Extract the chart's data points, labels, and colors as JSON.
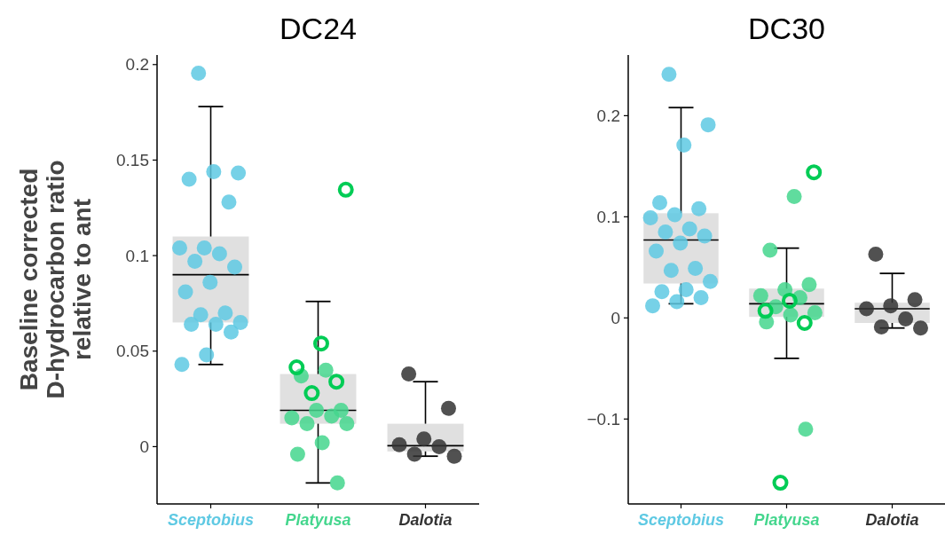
{
  "chart_data": [
    {
      "type": "box",
      "title": "DC24",
      "ylabel": "Baseline corrected\nD-hydrocarbon ratio\nrelative to ant",
      "categories": [
        "Sceptobius",
        "Platyusa",
        "Dalotia"
      ],
      "ylim": [
        -0.03,
        0.205
      ],
      "yticks": [
        0,
        0.05,
        {
          "value": 0.1,
          "label": "0.1"
        },
        0.15,
        {
          "value": 0.2,
          "label": "0.2"
        }
      ],
      "grid": false,
      "series": [
        {
          "type": "box",
          "color": "#e0e0e0",
          "boxes": [
            {
              "low": 0.043,
              "q1": 0.065,
              "median": 0.09,
              "q3": 0.11,
              "high": 0.178
            },
            {
              "low": -0.019,
              "q1": 0.012,
              "median": 0.019,
              "q3": 0.038,
              "high": 0.076
            },
            {
              "low": -0.005,
              "q1": -0.0025,
              "median": 0.0005,
              "q3": 0.012,
              "high": 0.034
            }
          ]
        },
        {
          "type": "scatter",
          "marker": "circle",
          "color": "#5ec9e3",
          "x": [
            "Sceptobius",
            "Sceptobius",
            "Sceptobius",
            "Sceptobius",
            "Sceptobius",
            "Sceptobius",
            "Sceptobius",
            "Sceptobius",
            "Sceptobius",
            "Sceptobius",
            "Sceptobius",
            "Sceptobius",
            "Sceptobius",
            "Sceptobius",
            "Sceptobius",
            "Sceptobius",
            "Sceptobius",
            "Sceptobius",
            "Sceptobius",
            "Sceptobius"
          ],
          "values": [
            0.1955,
            0.1432,
            0.1439,
            0.14,
            0.128,
            0.104,
            0.104,
            0.101,
            0.097,
            0.094,
            0.086,
            0.081,
            0.07,
            0.069,
            0.065,
            0.064,
            0.064,
            0.06,
            0.048,
            0.043
          ]
        },
        {
          "type": "scatter",
          "marker": "circle",
          "color": "#44d68d",
          "x": [
            "Platyusa",
            "Platyusa",
            "Platyusa",
            "Platyusa",
            "Platyusa",
            "Platyusa",
            "Platyusa",
            "Platyusa",
            "Platyusa",
            "Platyusa",
            "Platyusa"
          ],
          "values": [
            0.04,
            0.037,
            0.019,
            0.019,
            0.015,
            0.016,
            0.012,
            0.012,
            0.002,
            -0.004,
            -0.019
          ]
        },
        {
          "type": "scatter",
          "marker": "circle",
          "color": "#00cc55",
          "x": [
            "Platyusa",
            "Platyusa",
            "Platyusa",
            "Platyusa",
            "Platyusa"
          ],
          "values": [
            0.1345,
            0.054,
            0.0415,
            0.034,
            0.028
          ]
        },
        {
          "type": "scatter",
          "marker": "circle",
          "color": "#333333",
          "x": [
            "Dalotia",
            "Dalotia",
            "Dalotia",
            "Dalotia",
            "Dalotia",
            "Dalotia",
            "Dalotia"
          ],
          "values": [
            0.038,
            0.02,
            0.004,
            0.001,
            0.0,
            -0.004,
            -0.005
          ]
        }
      ]
    },
    {
      "type": "box",
      "title": "DC30",
      "categories": [
        "Sceptobius",
        "Platyusa",
        "Dalotia"
      ],
      "ylim": [
        -0.184,
        0.26
      ],
      "yticks": [
        {
          "value": -0.1,
          "label": "−0.1"
        },
        0,
        {
          "value": 0.1,
          "label": "0.1"
        },
        {
          "value": 0.2,
          "label": "0.2"
        }
      ],
      "grid": false,
      "series": [
        {
          "type": "box",
          "color": "#e0e0e0",
          "boxes": [
            {
              "low": 0.014,
              "q1": 0.034,
              "median": 0.077,
              "q3": 0.1035,
              "high": 0.208
            },
            {
              "low": -0.04,
              "q1": 0.001,
              "median": 0.014,
              "q3": 0.029,
              "high": 0.069
            },
            {
              "low": -0.01,
              "q1": -0.005,
              "median": 0.009,
              "q3": 0.015,
              "high": 0.044
            }
          ]
        },
        {
          "type": "scatter",
          "marker": "circle",
          "color": "#5ec9e3",
          "x": [
            "Sceptobius",
            "Sceptobius",
            "Sceptobius",
            "Sceptobius",
            "Sceptobius",
            "Sceptobius",
            "Sceptobius",
            "Sceptobius",
            "Sceptobius",
            "Sceptobius",
            "Sceptobius",
            "Sceptobius",
            "Sceptobius",
            "Sceptobius",
            "Sceptobius",
            "Sceptobius",
            "Sceptobius",
            "Sceptobius",
            "Sceptobius",
            "Sceptobius"
          ],
          "values": [
            0.241,
            0.191,
            0.171,
            0.114,
            0.108,
            0.102,
            0.099,
            0.088,
            0.085,
            0.081,
            0.074,
            0.066,
            0.049,
            0.047,
            0.036,
            0.028,
            0.026,
            0.02,
            0.016,
            0.012
          ]
        },
        {
          "type": "scatter",
          "marker": "circle",
          "color": "#44d68d",
          "x": [
            "Platyusa",
            "Platyusa",
            "Platyusa",
            "Platyusa",
            "Platyusa",
            "Platyusa",
            "Platyusa",
            "Platyusa",
            "Platyusa",
            "Platyusa",
            "Platyusa"
          ],
          "values": [
            0.12,
            0.067,
            0.033,
            0.028,
            0.022,
            0.02,
            0.011,
            0.005,
            0.003,
            -0.004,
            -0.11
          ]
        },
        {
          "type": "scatter",
          "marker": "circle",
          "color": "#00cc55",
          "x": [
            "Platyusa",
            "Platyusa",
            "Platyusa",
            "Platyusa",
            "Platyusa"
          ],
          "values": [
            0.144,
            0.017,
            0.007,
            -0.005,
            -0.163
          ]
        },
        {
          "type": "scatter",
          "marker": "circle",
          "color": "#333333",
          "x": [
            "Dalotia",
            "Dalotia",
            "Dalotia",
            "Dalotia",
            "Dalotia",
            "Dalotia",
            "Dalotia"
          ],
          "values": [
            0.063,
            0.018,
            0.012,
            0.009,
            -0.001,
            -0.009,
            -0.01
          ]
        }
      ]
    }
  ]
}
